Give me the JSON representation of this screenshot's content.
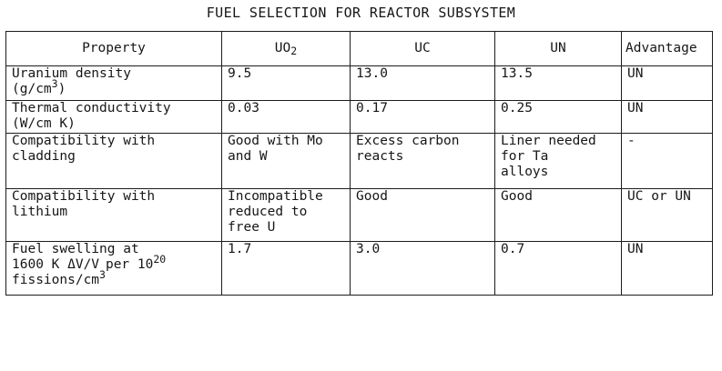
{
  "title": "FUEL SELECTION FOR REACTOR SUBSYSTEM",
  "columns": {
    "property": "Property",
    "uo2_base": "UO",
    "uo2_sub": "2",
    "uc": "UC",
    "un": "UN",
    "advantage": "Advantage"
  },
  "rows": [
    {
      "property_line1": "Uranium density",
      "property_line2": "(g/cm",
      "property_sup": "3",
      "property_tail": ")",
      "uo2": "9.5",
      "uc": "13.0",
      "un": "13.5",
      "advantage": "UN"
    },
    {
      "property": "Thermal conductivity\n(W/cm K)",
      "uo2": "0.03",
      "uc": "0.17",
      "un": "0.25",
      "advantage": "UN"
    },
    {
      "property": "Compatibility with\ncladding",
      "uo2": "Good with Mo\nand W",
      "uc": "Excess carbon\nreacts",
      "un": "Liner needed\nfor Ta\nalloys",
      "advantage": "-"
    },
    {
      "property": "Compatibility with\nlithium",
      "uo2": "Incompatible\nreduced to\nfree U",
      "uc": "Good",
      "un": "Good",
      "advantage": "UC or UN"
    },
    {
      "property_line1": "Fuel swelling at",
      "property_line2": "1600 K ΔV/V",
      "property_line2_sub": " ",
      "property_line2_tail": "per 10",
      "property_sup1": "20",
      "property_line3": "fissions/cm",
      "property_sup2": "3",
      "uo2": "1.7",
      "uc": "3.0",
      "un": "0.7",
      "advantage": "UN"
    }
  ]
}
